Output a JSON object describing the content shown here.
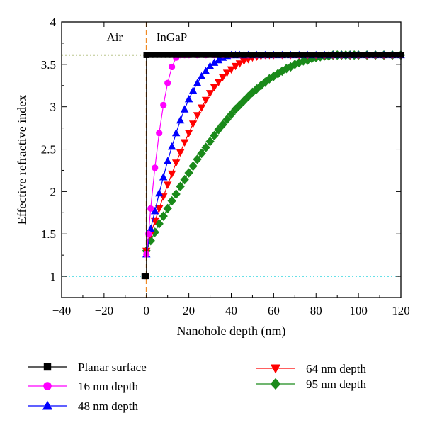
{
  "chart_data": {
    "type": "line",
    "xlabel": "Nanohole depth (nm)",
    "ylabel": "Effective refractive index",
    "xlim": [
      -40,
      120
    ],
    "ylim": [
      0.75,
      4
    ],
    "xticks": [
      -40,
      -20,
      0,
      20,
      40,
      60,
      80,
      100,
      120
    ],
    "xtick_labels": [
      "−40",
      "−20",
      "0",
      "20",
      "40",
      "60",
      "80",
      "100",
      "120"
    ],
    "yticks": [
      1,
      1.5,
      2,
      2.5,
      3,
      3.5,
      4
    ],
    "ytick_labels": [
      "1",
      "1.5",
      "2",
      "2.5",
      "3",
      "3.5",
      "4"
    ],
    "grid": false,
    "legend_position": "below",
    "annotations": {
      "air_label": "Air",
      "ingap_label": "InGaP",
      "interface_x": 0,
      "air_index": 1,
      "ingap_index": 3.61
    },
    "reference_line_colors": {
      "interface": "#f08a24",
      "air_index": "#33d6e0",
      "ingap_index": "#7a8f1f"
    },
    "series": [
      {
        "name": "Planar surface",
        "color": "#000000",
        "marker": "square",
        "x": [
          -1,
          -0.5,
          0,
          0,
          0,
          0,
          0,
          0,
          2,
          4,
          6,
          8,
          10,
          12,
          14,
          16,
          18,
          20,
          22,
          24,
          26,
          28,
          30,
          32,
          34,
          36,
          38,
          40,
          42,
          44,
          46,
          48,
          50,
          52,
          54,
          56,
          58,
          60,
          62,
          64,
          66,
          68,
          70,
          72,
          74,
          76,
          78,
          80,
          82,
          84,
          86,
          88,
          90,
          92,
          94,
          96,
          98,
          100,
          102,
          104,
          106,
          108,
          110,
          112,
          114,
          116,
          118,
          120
        ],
        "y": [
          1,
          1,
          1,
          3.61,
          3.61,
          3.61,
          3.61,
          3.61,
          3.61,
          3.61,
          3.61,
          3.61,
          3.61,
          3.61,
          3.61,
          3.61,
          3.61,
          3.61,
          3.61,
          3.61,
          3.61,
          3.61,
          3.61,
          3.61,
          3.61,
          3.61,
          3.61,
          3.61,
          3.61,
          3.61,
          3.61,
          3.61,
          3.61,
          3.61,
          3.61,
          3.61,
          3.61,
          3.61,
          3.61,
          3.61,
          3.61,
          3.61,
          3.61,
          3.61,
          3.61,
          3.61,
          3.61,
          3.61,
          3.61,
          3.61,
          3.61,
          3.61,
          3.61,
          3.61,
          3.61,
          3.61,
          3.61,
          3.61,
          3.61,
          3.61,
          3.61,
          3.61,
          3.61,
          3.61,
          3.61,
          3.61,
          3.61,
          3.61
        ]
      },
      {
        "name": "16 nm depth",
        "color": "#ff00ff",
        "marker": "circle",
        "x": [
          0,
          1,
          2,
          4,
          6,
          8,
          10,
          12,
          14,
          16,
          18,
          20,
          24,
          28,
          32,
          36,
          40,
          44,
          48,
          52,
          56,
          60,
          64,
          68,
          72,
          76,
          80,
          84,
          88,
          92,
          96,
          100,
          104,
          108,
          112,
          116,
          120
        ],
        "y": [
          1.26,
          1.5,
          1.8,
          2.28,
          2.69,
          3.02,
          3.28,
          3.47,
          3.58,
          3.61,
          3.61,
          3.61,
          3.61,
          3.61,
          3.61,
          3.61,
          3.61,
          3.61,
          3.61,
          3.61,
          3.61,
          3.61,
          3.61,
          3.61,
          3.61,
          3.61,
          3.61,
          3.61,
          3.61,
          3.61,
          3.61,
          3.61,
          3.61,
          3.61,
          3.61,
          3.61,
          3.61
        ]
      },
      {
        "name": "48 nm depth",
        "color": "#0000ff",
        "marker": "triangle-up",
        "x": [
          0,
          2,
          4,
          6,
          8,
          10,
          12,
          14,
          16,
          18,
          20,
          22,
          24,
          26,
          28,
          30,
          32,
          34,
          36,
          38,
          40,
          42,
          44,
          46,
          48,
          52,
          56,
          60,
          64,
          68,
          72,
          76,
          80,
          84,
          88,
          92,
          96,
          100,
          104,
          108,
          112,
          116,
          120
        ],
        "y": [
          1.26,
          1.56,
          1.77,
          1.98,
          2.17,
          2.36,
          2.53,
          2.69,
          2.84,
          2.97,
          3.09,
          3.19,
          3.28,
          3.36,
          3.42,
          3.48,
          3.52,
          3.55,
          3.58,
          3.6,
          3.61,
          3.61,
          3.61,
          3.61,
          3.61,
          3.61,
          3.61,
          3.61,
          3.61,
          3.61,
          3.61,
          3.61,
          3.61,
          3.61,
          3.61,
          3.61,
          3.61,
          3.61,
          3.61,
          3.61,
          3.61,
          3.61,
          3.61
        ]
      },
      {
        "name": "64 nm depth",
        "color": "#ff0000",
        "marker": "triangle-down",
        "x": [
          0,
          2,
          4,
          6,
          8,
          10,
          12,
          14,
          16,
          18,
          20,
          22,
          24,
          26,
          28,
          30,
          32,
          34,
          36,
          38,
          40,
          42,
          44,
          46,
          48,
          50,
          52,
          54,
          56,
          58,
          60,
          64,
          68,
          72,
          76,
          80,
          84,
          88,
          92,
          96,
          100,
          104,
          108,
          112,
          116,
          120
        ],
        "y": [
          1.3,
          1.5,
          1.65,
          1.8,
          1.94,
          2.08,
          2.21,
          2.34,
          2.46,
          2.58,
          2.69,
          2.8,
          2.9,
          2.99,
          3.08,
          3.16,
          3.23,
          3.29,
          3.35,
          3.4,
          3.44,
          3.48,
          3.51,
          3.54,
          3.56,
          3.58,
          3.59,
          3.6,
          3.61,
          3.61,
          3.61,
          3.61,
          3.61,
          3.61,
          3.61,
          3.61,
          3.61,
          3.61,
          3.61,
          3.61,
          3.61,
          3.61,
          3.61,
          3.61,
          3.61,
          3.61
        ]
      },
      {
        "name": "95 nm depth",
        "color": "#1a8a1a",
        "marker": "diamond",
        "x": [
          0,
          2,
          4,
          6,
          8,
          10,
          12,
          14,
          16,
          18,
          20,
          22,
          24,
          26,
          28,
          30,
          32,
          34,
          36,
          38,
          40,
          42,
          44,
          46,
          48,
          50,
          52,
          54,
          56,
          58,
          60,
          62,
          64,
          66,
          68,
          70,
          72,
          74,
          76,
          78,
          80,
          82,
          84,
          86,
          88,
          90,
          92,
          94,
          96,
          98,
          100,
          104,
          108,
          112,
          116,
          120
        ],
        "y": [
          1.3,
          1.42,
          1.52,
          1.62,
          1.71,
          1.8,
          1.89,
          1.97,
          2.06,
          2.14,
          2.22,
          2.3,
          2.38,
          2.45,
          2.52,
          2.59,
          2.66,
          2.73,
          2.79,
          2.85,
          2.91,
          2.97,
          3.02,
          3.07,
          3.12,
          3.17,
          3.21,
          3.25,
          3.29,
          3.33,
          3.36,
          3.39,
          3.42,
          3.45,
          3.47,
          3.5,
          3.52,
          3.54,
          3.55,
          3.57,
          3.58,
          3.59,
          3.6,
          3.6,
          3.61,
          3.61,
          3.61,
          3.61,
          3.61,
          3.61,
          3.61,
          3.61,
          3.61,
          3.61,
          3.61,
          3.61
        ]
      }
    ]
  }
}
